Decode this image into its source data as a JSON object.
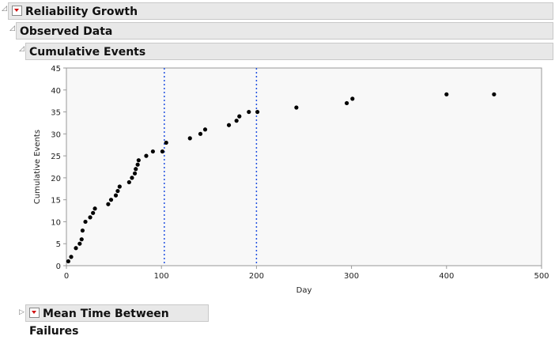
{
  "outline": {
    "title1": "Reliability Growth",
    "title2": "Observed Data",
    "title3": "Cumulative Events",
    "title4": "Mean Time Between Failures"
  },
  "chart_data": {
    "type": "scatter",
    "xlabel": "Day",
    "ylabel": "Cumulative Events",
    "xlim": [
      0,
      500
    ],
    "ylim": [
      0,
      45
    ],
    "xticks": [
      0,
      100,
      200,
      300,
      400,
      500
    ],
    "yticks": [
      0,
      5,
      10,
      15,
      20,
      25,
      30,
      35,
      40,
      45
    ],
    "reference_lines_x": [
      103,
      200
    ],
    "reference_line_color": "#2050e0",
    "grid": false,
    "x": [
      2,
      5,
      10,
      14,
      16,
      17,
      20,
      25,
      28,
      30,
      44,
      47,
      52,
      54,
      56,
      66,
      69,
      72,
      73,
      75,
      76,
      84,
      91,
      101,
      105,
      130,
      141,
      146,
      171,
      179,
      182,
      192,
      201,
      242,
      295,
      301,
      400,
      450
    ],
    "y": [
      1,
      2,
      4,
      5,
      6,
      8,
      10,
      11,
      12,
      13,
      14,
      15,
      16,
      17,
      18,
      19,
      20,
      21,
      22,
      23,
      24,
      25,
      26,
      26,
      28,
      29,
      30,
      31,
      32,
      33,
      34,
      35,
      35,
      36,
      37,
      38,
      39,
      39
    ]
  }
}
